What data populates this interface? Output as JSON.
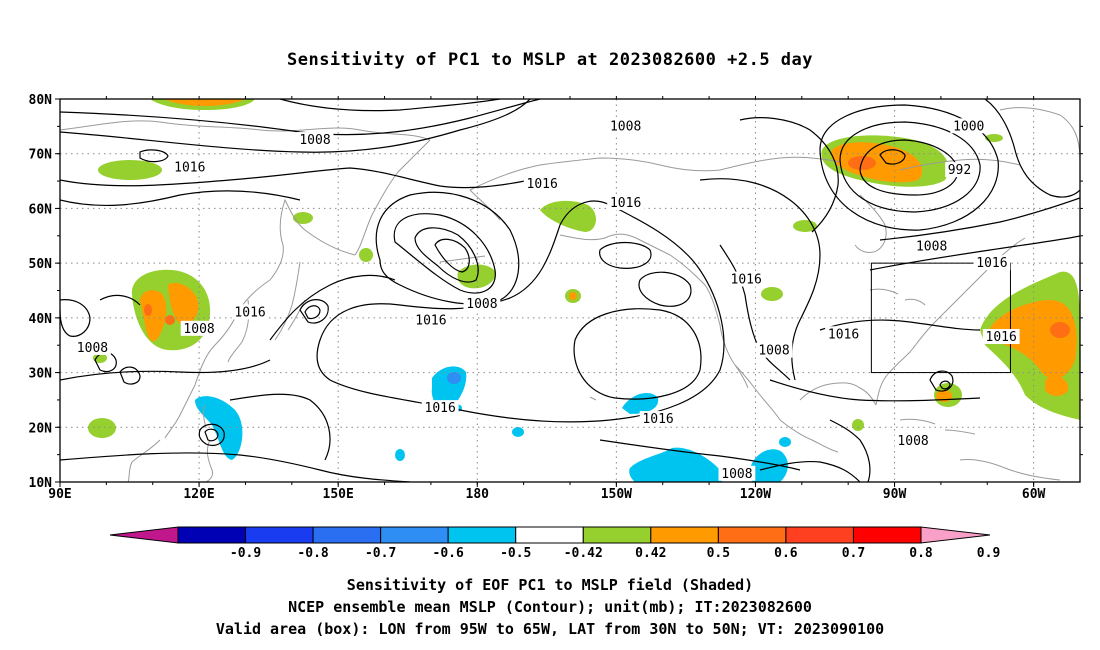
{
  "title": "Sensitivity of PC1 to MSLP at 2023082600 +2.5 day",
  "map": {
    "lat_ticks": [
      "80N",
      "70N",
      "60N",
      "50N",
      "40N",
      "30N",
      "20N",
      "10N"
    ],
    "lon_ticks": [
      "90E",
      "120E",
      "150E",
      "180",
      "150W",
      "120W",
      "90W",
      "60W"
    ],
    "lon_range": [
      "90E",
      "50W"
    ],
    "lat_range": [
      "10N",
      "80N"
    ],
    "grid": "dotted",
    "contour_labels": [
      {
        "text": "1008",
        "lon": 145,
        "lat": 72.5
      },
      {
        "text": "1016",
        "lon": 118,
        "lat": 67.5
      },
      {
        "text": "1008",
        "lon": -148,
        "lat": 75
      },
      {
        "text": "1016",
        "lon": -166,
        "lat": 64.5
      },
      {
        "text": "1016",
        "lon": -148,
        "lat": 61
      },
      {
        "text": "1000",
        "lon": -74,
        "lat": 75
      },
      {
        "text": "992",
        "lon": -76,
        "lat": 67
      },
      {
        "text": "1008",
        "lon": -82,
        "lat": 53
      },
      {
        "text": "1016",
        "lon": -69,
        "lat": 50
      },
      {
        "text": "1016",
        "lon": -122,
        "lat": 47
      },
      {
        "text": "1016",
        "lon": 131,
        "lat": 41
      },
      {
        "text": "1016",
        "lon": 170,
        "lat": 39.5
      },
      {
        "text": "1008",
        "lon": -179,
        "lat": 42.5
      },
      {
        "text": "1008",
        "lon": 120,
        "lat": 38
      },
      {
        "text": "1008",
        "lon": 97,
        "lat": 34.5
      },
      {
        "text": "1016",
        "lon": -101,
        "lat": 37
      },
      {
        "text": "1016",
        "lon": -67,
        "lat": 36.5
      },
      {
        "text": "1008",
        "lon": -116,
        "lat": 34
      },
      {
        "text": "1016",
        "lon": 172,
        "lat": 23.5
      },
      {
        "text": "1016",
        "lon": -141,
        "lat": 21.5
      },
      {
        "text": "1008",
        "lon": -124,
        "lat": 11.5
      },
      {
        "text": "1008",
        "lon": -86,
        "lat": 17.5
      }
    ],
    "valid_box": {
      "lon": [
        -95,
        -65
      ],
      "lat": [
        30,
        50
      ]
    }
  },
  "colorbar": {
    "labels": [
      "-0.9",
      "-0.8",
      "-0.7",
      "-0.6",
      "-0.5",
      "-0.42",
      "0.42",
      "0.5",
      "0.6",
      "0.7",
      "0.8",
      "0.9"
    ],
    "colors": [
      "#0000b4",
      "#1a3cf0",
      "#2a6ef2",
      "#2e8ef4",
      "#00c4f0",
      "#ffffff",
      "#96d02e",
      "#ff9a00",
      "#ff6e14",
      "#ff4020",
      "#ff0000"
    ],
    "low_end_color": "#c0188c",
    "high_end_color": "#f8a0c8"
  },
  "caption": {
    "line1": "Sensitivity of EOF PC1 to MSLP field (Shaded)",
    "line2": "NCEP ensemble mean MSLP (Contour); unit(mb); IT:2023082600",
    "line3": "Valid area (box): LON from 95W to 65W, LAT from 30N to 50N; VT: 2023090100"
  }
}
